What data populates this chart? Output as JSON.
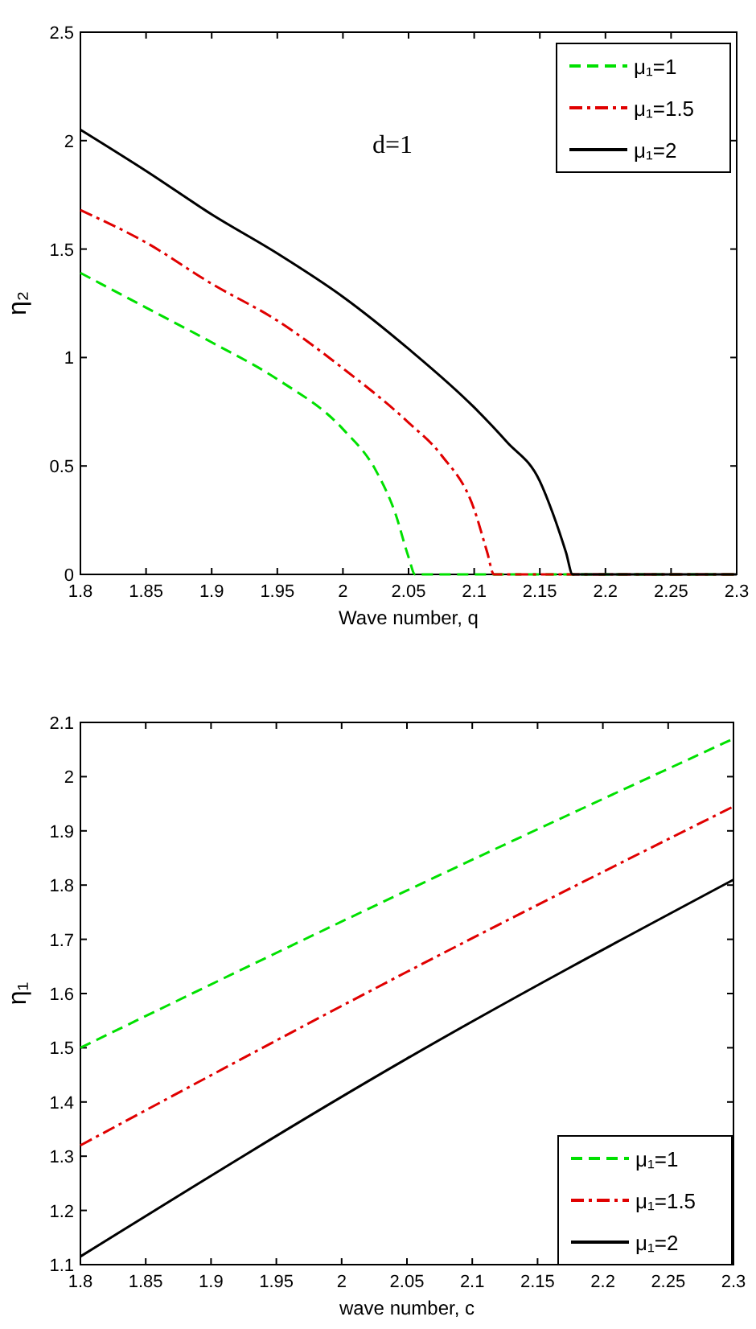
{
  "chart_data": [
    {
      "type": "line",
      "xlabel": "Wave number, q",
      "ylabel": "η₂",
      "annotations": [
        "d=1"
      ],
      "legend": "top right",
      "xlim": [
        1.8,
        2.3
      ],
      "ylim": [
        0,
        2.5
      ],
      "xticks": [
        1.8,
        1.85,
        1.9,
        1.95,
        2,
        2.05,
        2.1,
        2.15,
        2.2,
        2.25,
        2.3
      ],
      "yticks": [
        0,
        0.5,
        1,
        1.5,
        2,
        2.5
      ],
      "series": [
        {
          "name": "μ₁=1",
          "color": "#00e000",
          "line_style": "dashed",
          "x": [
            1.8,
            1.85,
            1.9,
            1.95,
            2.0,
            2.025,
            2.04,
            2.05,
            2.055,
            2.3
          ],
          "values": [
            1.39,
            1.23,
            1.07,
            0.9,
            0.67,
            0.48,
            0.28,
            0.08,
            0,
            0
          ]
        },
        {
          "name": "μ₁=1.5",
          "color": "#e00000",
          "line_style": "dashdot",
          "x": [
            1.8,
            1.85,
            1.9,
            1.95,
            2.0,
            2.05,
            2.075,
            2.1,
            2.11,
            2.115,
            2.3
          ],
          "values": [
            1.68,
            1.53,
            1.34,
            1.17,
            0.95,
            0.7,
            0.55,
            0.3,
            0.1,
            0,
            0
          ]
        },
        {
          "name": "μ₁=2",
          "color": "#000000",
          "line_style": "solid",
          "x": [
            1.8,
            1.85,
            1.9,
            1.95,
            2.0,
            2.05,
            2.1,
            2.125,
            2.15,
            2.16,
            2.17,
            2.175,
            2.3
          ],
          "values": [
            2.05,
            1.86,
            1.66,
            1.48,
            1.28,
            1.04,
            0.77,
            0.61,
            0.43,
            0.28,
            0.1,
            0,
            0
          ]
        }
      ]
    },
    {
      "type": "line",
      "xlabel": "wave number, c",
      "ylabel": "η₁",
      "legend": "bottom right",
      "xlim": [
        1.8,
        2.3
      ],
      "ylim": [
        1.1,
        2.1
      ],
      "xticks": [
        1.8,
        1.85,
        1.9,
        1.95,
        2,
        2.05,
        2.1,
        2.15,
        2.2,
        2.25,
        2.3
      ],
      "yticks": [
        1.1,
        1.2,
        1.3,
        1.4,
        1.5,
        1.6,
        1.7,
        1.8,
        1.9,
        2,
        2.1
      ],
      "series": [
        {
          "name": "μ₁=1",
          "color": "#00e000",
          "line_style": "dashed",
          "x": [
            1.8,
            2.05,
            2.3
          ],
          "values": [
            1.5,
            1.79,
            2.07
          ]
        },
        {
          "name": "μ₁=1.5",
          "color": "#e00000",
          "line_style": "dashdot",
          "x": [
            1.8,
            2.05,
            2.3
          ],
          "values": [
            1.32,
            1.64,
            1.945
          ]
        },
        {
          "name": "μ₁=2",
          "color": "#000000",
          "line_style": "solid",
          "x": [
            1.8,
            2.05,
            2.3
          ],
          "values": [
            1.115,
            1.48,
            1.81
          ]
        }
      ]
    }
  ]
}
